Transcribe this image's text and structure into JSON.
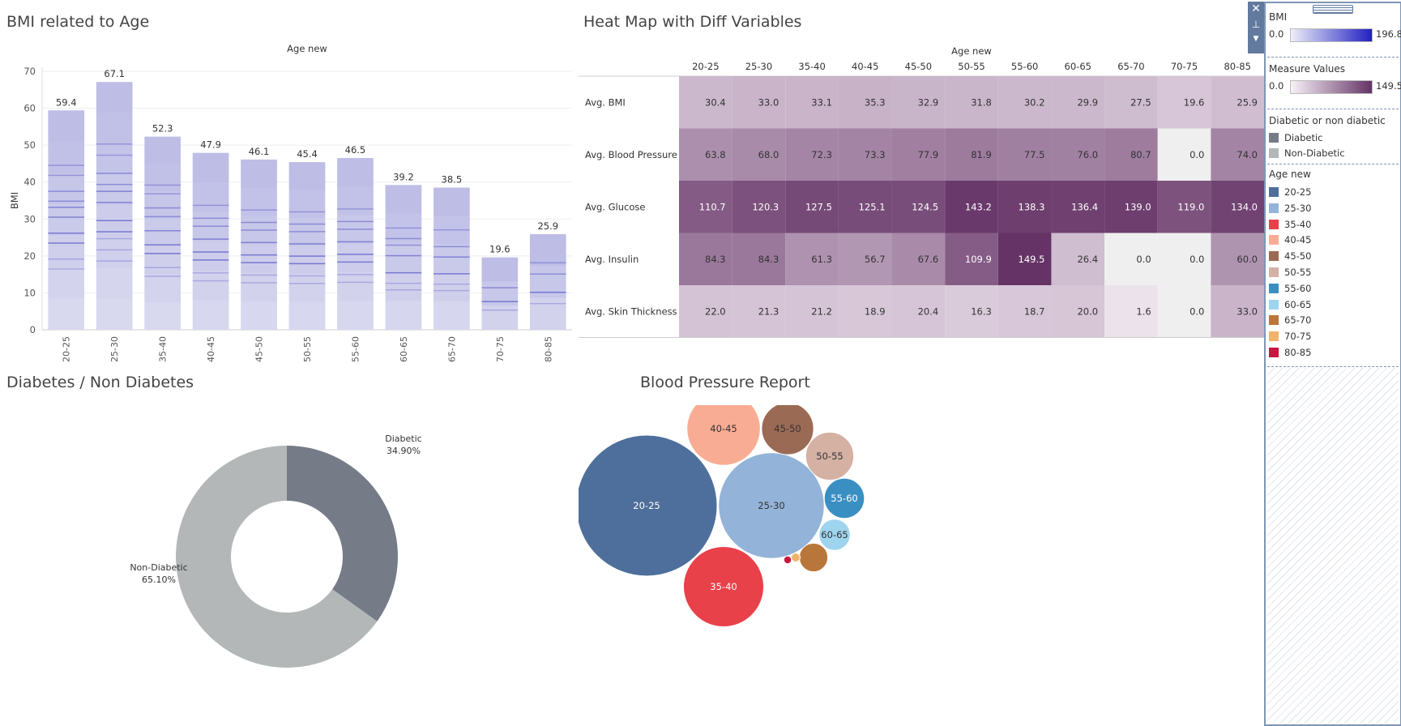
{
  "titles": {
    "bmi": "BMI related to Age",
    "heatmap": "Heat Map with Diff Variables",
    "diabetes": "Diabetes / Non Diabetes",
    "bp": "Blood Pressure Report"
  },
  "colors": {
    "bar_light": "#dcdcf0",
    "bar_mid": "#b3b3e3",
    "bar_dark": "#5b5bcc",
    "diabetic": "#767b88",
    "non_diabetic": "#b4b7b7",
    "heat_low": "#efe6ef",
    "heat_high": "#653366",
    "zero_cell": "#efefef"
  },
  "legend": {
    "bmi_title": "BMI",
    "bmi_min": "0.0",
    "bmi_max": "196.8",
    "mv_title": "Measure Values",
    "mv_min": "0.0",
    "mv_max": "149.5",
    "diab_title": "Diabetic or non diabetic",
    "diab_items": [
      {
        "label": "Diabetic",
        "color": "#767b88"
      },
      {
        "label": "Non-Diabetic",
        "color": "#b4b7b7"
      }
    ],
    "age_title": "Age new",
    "age_items": [
      {
        "label": "20-25",
        "color": "#4e6f9b"
      },
      {
        "label": "25-30",
        "color": "#93b3d8"
      },
      {
        "label": "35-40",
        "color": "#e8414a"
      },
      {
        "label": "40-45",
        "color": "#f9ac94"
      },
      {
        "label": "45-50",
        "color": "#9b6a55"
      },
      {
        "label": "50-55",
        "color": "#d4b1a3"
      },
      {
        "label": "55-60",
        "color": "#3a8fc2"
      },
      {
        "label": "60-65",
        "color": "#9fd4ee"
      },
      {
        "label": "65-70",
        "color": "#b9763a"
      },
      {
        "label": "70-75",
        "color": "#f0b36d"
      },
      {
        "label": "80-85",
        "color": "#c8173f"
      }
    ]
  },
  "chart_data": [
    {
      "type": "bar",
      "name": "bmi_by_age",
      "title": "BMI related to Age",
      "xlabel": "Age new",
      "ylabel": "BMI",
      "categories": [
        "20-25",
        "25-30",
        "35-40",
        "40-45",
        "45-50",
        "50-55",
        "55-60",
        "60-65",
        "65-70",
        "70-75",
        "80-85"
      ],
      "values": [
        59.4,
        67.1,
        52.3,
        47.9,
        46.1,
        45.4,
        46.5,
        39.2,
        38.5,
        19.6,
        25.9
      ],
      "value_labels": [
        "59.4",
        "67.1",
        "52.3",
        "47.9",
        "46.1",
        "45.4",
        "46.5",
        "39.2",
        "38.5",
        "19.6",
        "25.9"
      ],
      "yticks": [
        "0",
        "10",
        "20",
        "30",
        "40",
        "50",
        "60",
        "70"
      ],
      "ylim": [
        0,
        70
      ],
      "grid": true
    },
    {
      "type": "heatmap",
      "name": "measure_heatmap",
      "title": "Heat Map with Diff Variables",
      "xlabel": "Age new",
      "x": [
        "20-25",
        "25-30",
        "35-40",
        "40-45",
        "45-50",
        "50-55",
        "55-60",
        "60-65",
        "65-70",
        "70-75",
        "80-85"
      ],
      "rows": [
        "Avg. BMI",
        "Avg. Blood Pressure",
        "Avg. Glucose",
        "Avg. Insulin",
        "Avg. Skin Thickness"
      ],
      "values": [
        [
          30.4,
          33.0,
          33.1,
          35.3,
          32.9,
          31.8,
          30.2,
          29.9,
          27.5,
          19.6,
          25.9
        ],
        [
          63.8,
          68.0,
          72.3,
          73.3,
          77.9,
          81.9,
          77.5,
          76.0,
          80.7,
          0.0,
          74.0
        ],
        [
          110.7,
          120.3,
          127.5,
          125.1,
          124.5,
          143.2,
          138.3,
          136.4,
          139.0,
          119.0,
          134.0
        ],
        [
          84.3,
          84.3,
          61.3,
          56.7,
          67.6,
          109.9,
          149.5,
          26.4,
          0.0,
          0.0,
          60.0
        ],
        [
          22.0,
          21.3,
          21.2,
          18.9,
          20.4,
          16.3,
          18.7,
          20.0,
          1.6,
          0.0,
          33.0
        ]
      ],
      "labels": [
        [
          "30.4",
          "33.0",
          "33.1",
          "35.3",
          "32.9",
          "31.8",
          "30.2",
          "29.9",
          "27.5",
          "19.6",
          "25.9"
        ],
        [
          "63.8",
          "68.0",
          "72.3",
          "73.3",
          "77.9",
          "81.9",
          "77.5",
          "76.0",
          "80.7",
          "0.0",
          "74.0"
        ],
        [
          "110.7",
          "120.3",
          "127.5",
          "125.1",
          "124.5",
          "143.2",
          "138.3",
          "136.4",
          "139.0",
          "119.0",
          "134.0"
        ],
        [
          "84.3",
          "84.3",
          "61.3",
          "56.7",
          "67.6",
          "109.9",
          "149.5",
          "26.4",
          "0.0",
          "0.0",
          "60.0"
        ],
        [
          "22.0",
          "21.3",
          "21.2",
          "18.9",
          "20.4",
          "16.3",
          "18.7",
          "20.0",
          "1.6",
          "0.0",
          "33.0"
        ]
      ],
      "color_range": [
        0,
        149.5
      ]
    },
    {
      "type": "pie",
      "name": "diabetes_donut",
      "title": "Diabetes / Non Diabetes",
      "slices": [
        {
          "label": "Diabetic",
          "pct_label": "34.90%",
          "value": 34.9
        },
        {
          "label": "Non-Diabetic",
          "pct_label": "65.10%",
          "value": 65.1
        }
      ]
    },
    {
      "type": "scatter",
      "name": "bp_bubbles",
      "title": "Blood Pressure Report",
      "series": [
        {
          "label": "20-25",
          "size": 100,
          "show_label": true
        },
        {
          "label": "25-30",
          "size": 56.2,
          "show_label": true
        },
        {
          "label": "35-40",
          "size": 32.4,
          "show_label": true
        },
        {
          "label": "40-45",
          "size": 27.1,
          "show_label": true
        },
        {
          "label": "45-50",
          "size": 13.6,
          "show_label": true
        },
        {
          "label": "50-55",
          "size": 11.6,
          "show_label": true
        },
        {
          "label": "55-60",
          "size": 8.1,
          "show_label": true
        },
        {
          "label": "60-65",
          "size": 4.9,
          "show_label": true
        },
        {
          "label": "65-70",
          "size": 4.1,
          "show_label": false
        },
        {
          "label": "70-75",
          "size": 0.4,
          "show_label": false
        },
        {
          "label": "80-85",
          "size": 0.3,
          "show_label": false
        }
      ]
    }
  ]
}
